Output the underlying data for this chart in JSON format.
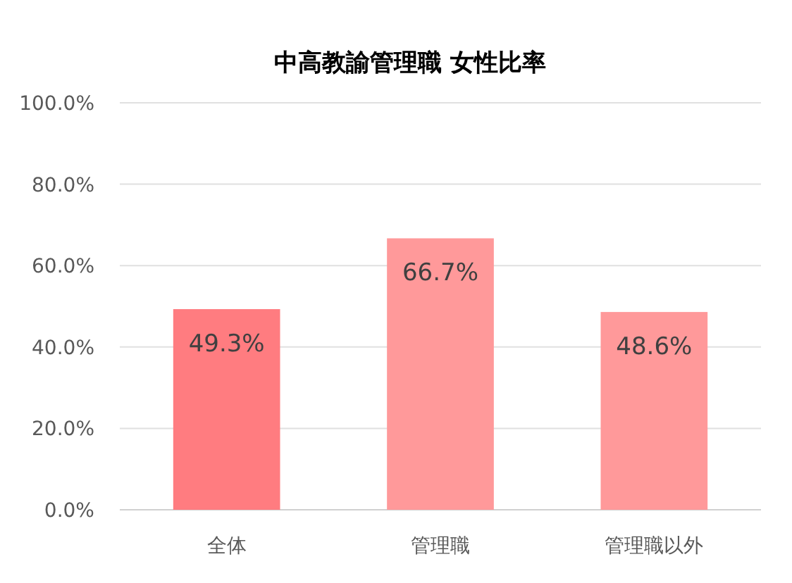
{
  "chart_data": {
    "type": "bar",
    "title": "中高教諭管理職 女性比率",
    "categories": [
      "全体",
      "管理職",
      "管理職以外"
    ],
    "values": [
      49.3,
      66.7,
      48.6
    ],
    "colors": [
      "#ff7c80",
      "#ff999a",
      "#ff999a"
    ],
    "value_labels": [
      "49.3%",
      "66.7%",
      "48.6%"
    ],
    "ylim": [
      0,
      100
    ],
    "yticks": [
      {
        "value": 0,
        "label": "0.0%"
      },
      {
        "value": 20,
        "label": "20.0%"
      },
      {
        "value": 40,
        "label": "40.0%"
      },
      {
        "value": 60,
        "label": "60.0%"
      },
      {
        "value": 80,
        "label": "80.0%"
      },
      {
        "value": 100,
        "label": "100.0%"
      }
    ],
    "grid": "y"
  }
}
